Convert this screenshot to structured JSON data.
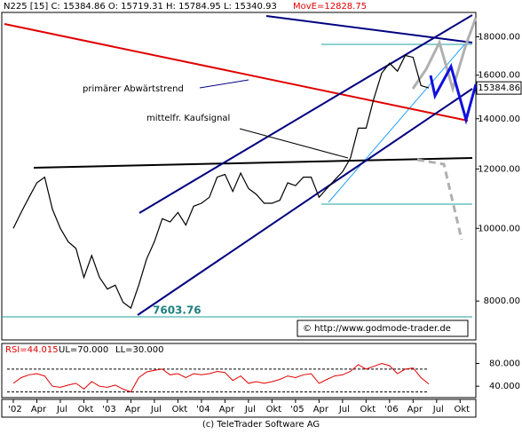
{
  "chart_data": {
    "type": "line",
    "header": "N225 [15] C: 15384.86 O: 15719.31 H: 15784.95 L: 15340.93",
    "header_mov": "MovE=12828.75",
    "annotations": [
      "primärer Abwärtstrend",
      "mittelfr. Kaufsignal"
    ],
    "low_label": 7603.76,
    "last_price": 15384.86,
    "source": "© http://www.godmode-trader.de",
    "footer": "(c) TeleTrader Software AG",
    "log_scale": true,
    "ylim": [
      7100,
      19400
    ],
    "yticks": [
      {
        "value": 8000,
        "label": "8000.00"
      },
      {
        "value": 10000,
        "label": "10000.00"
      },
      {
        "value": 12000,
        "label": "12000.00"
      },
      {
        "value": 14000,
        "label": "14000.00"
      },
      {
        "value": 16000,
        "label": "16000.00"
      },
      {
        "value": 18000,
        "label": "18000.00"
      }
    ],
    "categories": [
      "'02",
      null,
      null,
      "Apr",
      null,
      null,
      "Jul",
      null,
      null,
      "Okt",
      null,
      null,
      "'03",
      null,
      null,
      "Apr",
      null,
      null,
      "Jul",
      null,
      null,
      "Okt",
      null,
      null,
      "'04",
      null,
      null,
      "Apr",
      null,
      null,
      "Jul",
      null,
      null,
      "Okt",
      null,
      null,
      "'05",
      null,
      null,
      "Apr",
      null,
      null,
      "Jul",
      null,
      null,
      "Okt",
      null,
      null,
      "'06",
      null,
      null,
      "Apr",
      null,
      null,
      "Jul",
      null,
      null,
      "Okt",
      null,
      null
    ],
    "series": [
      {
        "name": "N225",
        "color": "#000000",
        "values": [
          10000,
          10500,
          11000,
          11500,
          11700,
          10600,
          10000,
          9600,
          9400,
          8600,
          9200,
          8600,
          8300,
          8400,
          7970,
          7830,
          8400,
          9100,
          9600,
          10300,
          10200,
          10500,
          10100,
          10700,
          10800,
          11000,
          11700,
          11800,
          11200,
          11850,
          11300,
          11100,
          10800,
          10800,
          10900,
          11500,
          11400,
          11700,
          11700,
          11000,
          11300,
          11600,
          11900,
          12400,
          13600,
          13600,
          14900,
          16100,
          16600,
          16200,
          17000,
          16900,
          15500,
          15384.86,
          null,
          null,
          null,
          null,
          null,
          null
        ]
      }
    ],
    "rsi": {
      "label": "RSI=44.015",
      "color": "#e00000",
      "upper": {
        "value": 70,
        "label": "UL=70.000"
      },
      "lower": {
        "value": 30,
        "label": "LL=30.000"
      },
      "ylim": [
        20,
        115
      ],
      "yticks": [
        {
          "value": 40,
          "label": "40.000"
        },
        {
          "value": 80,
          "label": "80.000"
        }
      ],
      "values": [
        45,
        55,
        60,
        62,
        58,
        40,
        38,
        42,
        45,
        35,
        48,
        40,
        38,
        42,
        35,
        30,
        55,
        65,
        68,
        70,
        60,
        62,
        55,
        62,
        60,
        62,
        66,
        64,
        50,
        58,
        45,
        48,
        45,
        48,
        52,
        58,
        55,
        60,
        62,
        45,
        52,
        58,
        60,
        66,
        78,
        70,
        75,
        80,
        76,
        62,
        70,
        72,
        55,
        44.015,
        null,
        null,
        null,
        null,
        null,
        null
      ]
    }
  }
}
